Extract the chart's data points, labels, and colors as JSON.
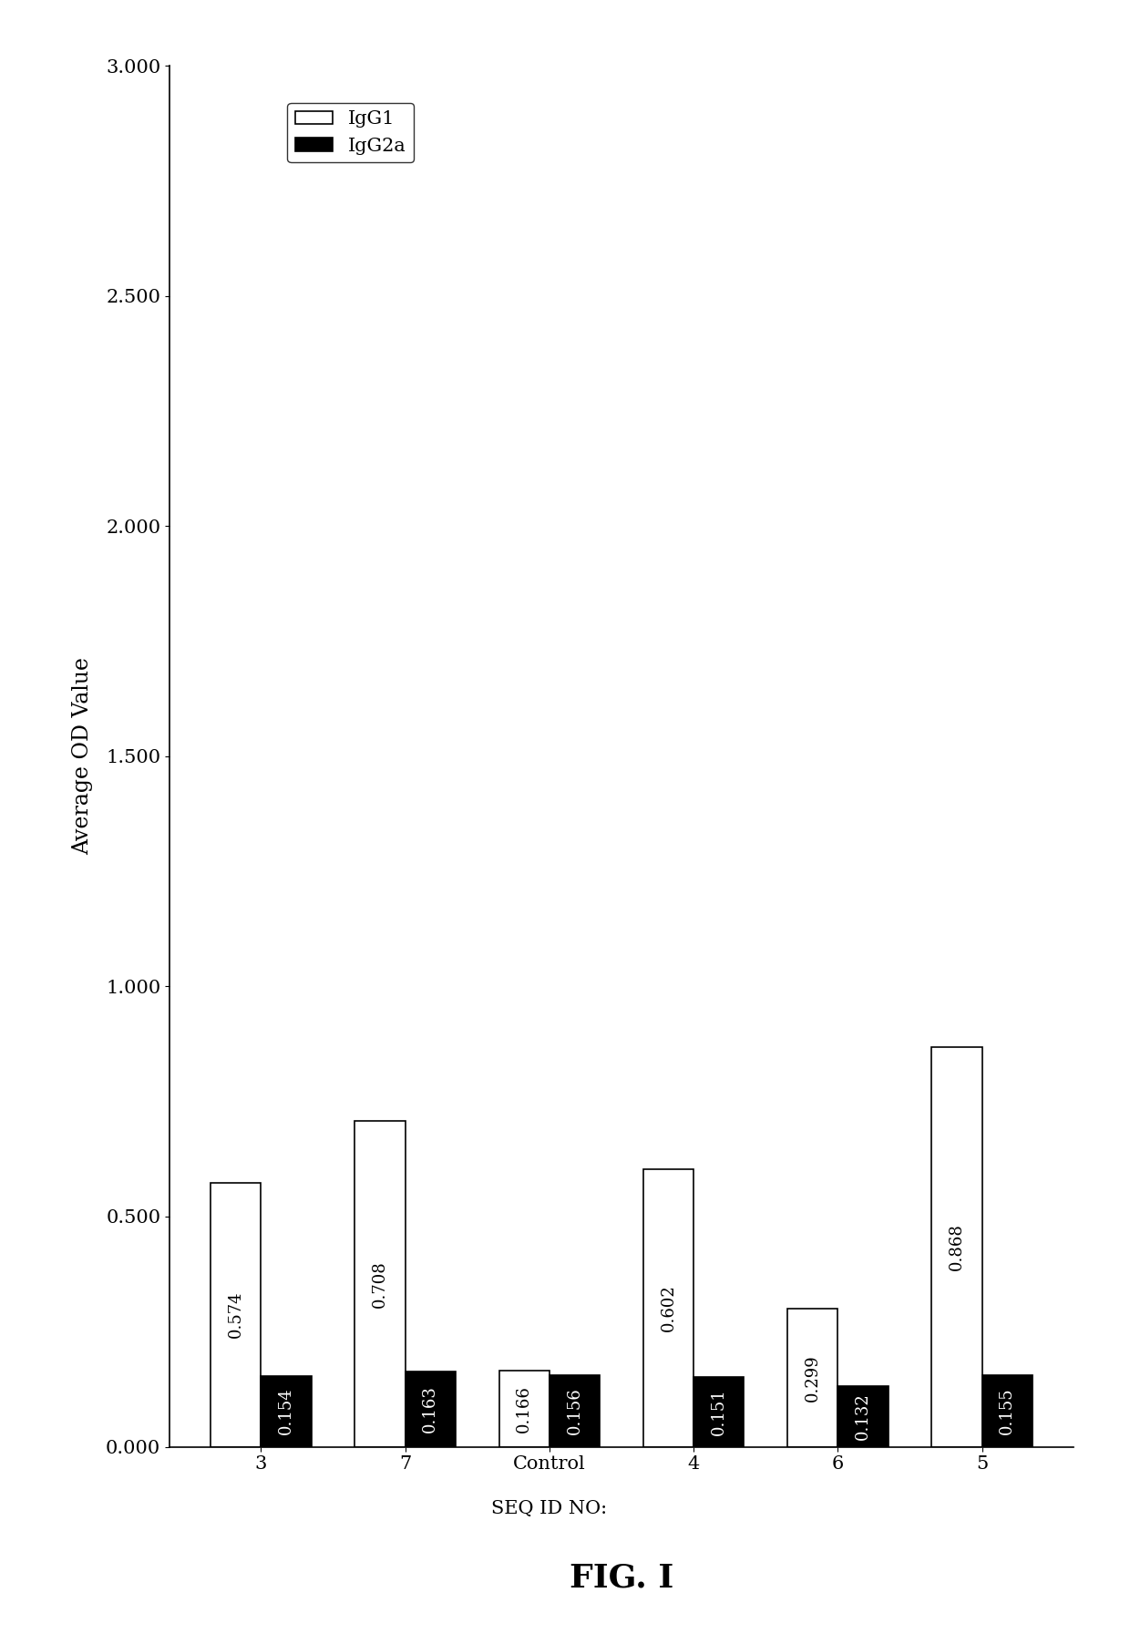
{
  "categories": [
    "3",
    "7",
    "Control\nSEQ ID NO:",
    "4",
    "6",
    "5"
  ],
  "IgG1": [
    0.574,
    0.708,
    0.166,
    0.602,
    0.299,
    0.868
  ],
  "IgG2a": [
    0.154,
    0.163,
    0.156,
    0.151,
    0.132,
    0.155
  ],
  "IgG1_labels": [
    "0.574",
    "0.708",
    "0.166",
    "0.602",
    "0.299",
    "0.868"
  ],
  "IgG2a_labels": [
    "0.154",
    "0.163",
    "0.156",
    "0.151",
    "0.132",
    "0.155"
  ],
  "ylabel": "Average OD Value",
  "xlabel": "SEQ ID NO:",
  "title": "FIG. I",
  "ylim": [
    0.0,
    3.0
  ],
  "yticks": [
    0.0,
    0.5,
    1.0,
    1.5,
    2.0,
    2.5,
    3.0
  ],
  "bar_width": 0.35,
  "IgG1_color": "#ffffff",
  "IgG2a_color": "#000000",
  "bar_edgecolor": "#000000",
  "background_color": "#ffffff",
  "legend_IgG1": "IgG1",
  "legend_IgG2a": "IgG2a"
}
